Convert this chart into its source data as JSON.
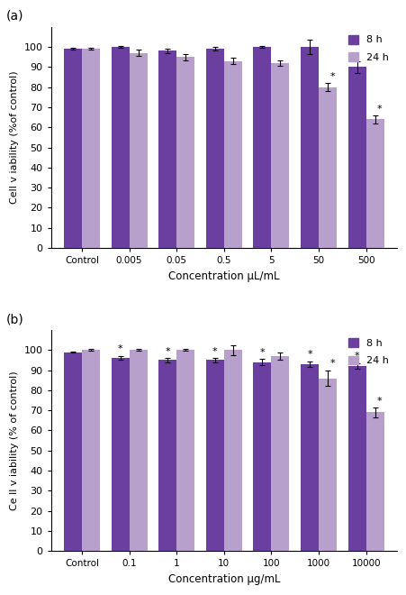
{
  "panel_a": {
    "categories": [
      "Control",
      "0.005",
      "0.05",
      "0.5",
      "5",
      "50",
      "500"
    ],
    "values_8h": [
      99,
      100,
      98,
      99,
      100,
      100,
      90
    ],
    "values_24h": [
      99,
      97,
      95,
      93,
      92,
      80,
      64
    ],
    "err_8h": [
      0.4,
      0.4,
      1.2,
      1.0,
      0.4,
      3.5,
      3.0
    ],
    "err_24h": [
      0.4,
      1.5,
      1.5,
      1.5,
      1.5,
      2.0,
      2.0
    ],
    "star_8h": [
      false,
      false,
      false,
      false,
      false,
      false,
      false
    ],
    "star_24h": [
      false,
      false,
      false,
      false,
      false,
      true,
      true
    ],
    "xlabel": "Concentration μL/mL",
    "ylabel": "Cell v iability (%of control)",
    "label": "(a)"
  },
  "panel_b": {
    "categories": [
      "Control",
      "0.1",
      "1",
      "10",
      "100",
      "1000",
      "10000"
    ],
    "values_8h": [
      99,
      96,
      95,
      95,
      94,
      93,
      92
    ],
    "values_24h": [
      100,
      100,
      100,
      100,
      97,
      86,
      69
    ],
    "err_8h": [
      0.4,
      1.0,
      1.0,
      1.0,
      1.5,
      1.5,
      1.5
    ],
    "err_24h": [
      0.4,
      0.5,
      0.5,
      2.5,
      2.0,
      4.0,
      2.5
    ],
    "star_8h": [
      false,
      true,
      true,
      true,
      true,
      true,
      true
    ],
    "star_24h": [
      false,
      false,
      false,
      false,
      false,
      true,
      true
    ],
    "xlabel": "Concentration μg/mL",
    "ylabel": "Ce ll v iability (% of control)",
    "label": "(b)"
  },
  "color_8h": "#6b3fa0",
  "color_24h": "#b8a0cc",
  "legend_8h": "8 h",
  "legend_24h": "24 h",
  "ylim": [
    0,
    110
  ],
  "yticks": [
    0,
    10,
    20,
    30,
    40,
    50,
    60,
    70,
    80,
    90,
    100
  ],
  "bar_width": 0.38
}
